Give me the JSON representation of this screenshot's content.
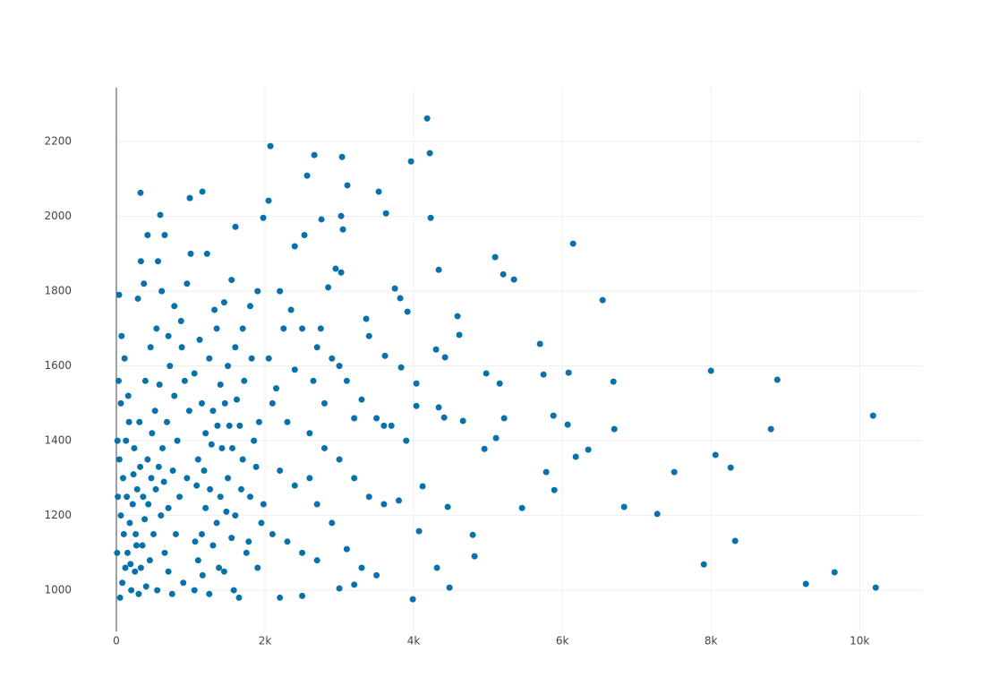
{
  "chart_data": {
    "type": "scatter",
    "color": "#0672a9",
    "grid": true,
    "xlim": [
      0,
      10840
    ],
    "ylim": [
      890,
      2344
    ],
    "xticks": [
      0,
      {
        "value": 2000,
        "label": "2k"
      },
      {
        "value": 4000,
        "label": "4k"
      },
      {
        "value": 6000,
        "label": "6k"
      },
      {
        "value": 8000,
        "label": "8k"
      },
      {
        "value": 10000,
        "label": "10k"
      }
    ],
    "yticks": [
      1000,
      1200,
      1400,
      1600,
      1800,
      2000,
      2200
    ],
    "x": [
      4181,
      2072,
      4217,
      2663,
      3036,
      3964,
      2566,
      3108,
      325,
      1157,
      3530,
      988,
      2048,
      3627,
      590,
      1976,
      3024,
      4229,
      2759,
      6145,
      1602,
      5096,
      5205,
      5349,
      4337,
      6542,
      4590,
      4614,
      5699,
      3916,
      36,
      8000,
      8892,
      6687,
      6084,
      5747,
      4976,
      5157,
      5880,
      10181,
      6072,
      5217,
      6699,
      8807,
      6349,
      6181,
      8060,
      8265,
      7506,
      5783,
      5892,
      5458,
      6831,
      7277,
      8325,
      7904,
      9663,
      9277,
      10217,
      4482,
      3988,
      4795,
      4819,
      4313,
      4072,
      4458,
      4120,
      4952,
      5108,
      4410,
      4663,
      4337,
      4036,
      4036,
      4301,
      4422,
      3831,
      3614,
      3361,
      3747,
      3819,
      3024,
      3048,
      2200,
      2350,
      2500,
      2700,
      2900,
      3100,
      3300,
      3500,
      3700,
      3900,
      2100,
      2300,
      2600,
      2800,
      3000,
      3200,
      3400,
      3600,
      3800,
      2200,
      2400,
      2700,
      2900,
      3100,
      3300,
      3500,
      2500,
      2700,
      2300,
      2100,
      2200,
      2500,
      3000,
      3200,
      2600,
      2800,
      3000,
      3200,
      3400,
      3600,
      2050,
      2150,
      2400,
      2650,
      2850,
      2950,
      2400,
      2530,
      2250,
      2750,
      50,
      80,
      120,
      150,
      100,
      60,
      200,
      250,
      300,
      350,
      180,
      220,
      280,
      90,
      40,
      130,
      170,
      60,
      30,
      110,
      70,
      20,
      10,
      15,
      400,
      450,
      500,
      550,
      600,
      650,
      700,
      750,
      800,
      850,
      900,
      950,
      420,
      480,
      520,
      580,
      620,
      680,
      720,
      780,
      820,
      880,
      920,
      980,
      360,
      320,
      240,
      160,
      140,
      260,
      380,
      430,
      470,
      530,
      570,
      640,
      700,
      760,
      330,
      270,
      190,
      230,
      310,
      390,
      460,
      540,
      610,
      330,
      370,
      290,
      420,
      560,
      650,
      950,
      870,
      780,
      700,
      1000,
      1050,
      1100,
      1150,
      1200,
      1250,
      1300,
      1350,
      1400,
      1450,
      1500,
      1550,
      1600,
      1650,
      1700,
      1750,
      1800,
      1850,
      1900,
      1950,
      1100,
      1200,
      1300,
      1400,
      1500,
      1600,
      1700,
      1800,
      1900,
      1150,
      1250,
      1350,
      1450,
      1550,
      1050,
      1120,
      1220,
      1320,
      1420,
      1520,
      1620,
      1720,
      1820,
      1920,
      1080,
      1180,
      1280,
      1380,
      1480,
      1580,
      1680,
      1780,
      1880,
      1980,
      1060,
      1160,
      1260,
      1360,
      1460,
      1560,
      1660
    ],
    "values": [
      2262,
      2188,
      2169,
      2164,
      2159,
      2147,
      2109,
      2083,
      2063,
      2066,
      2066,
      2049,
      2042,
      2008,
      2004,
      1996,
      2001,
      1996,
      1992,
      1927,
      1972,
      1891,
      1845,
      1831,
      1857,
      1776,
      1733,
      1683,
      1659,
      1745,
      1790,
      1587,
      1563,
      1558,
      1582,
      1577,
      1580,
      1553,
      1467,
      1467,
      1443,
      1460,
      1431,
      1431,
      1376,
      1357,
      1362,
      1328,
      1316,
      1316,
      1268,
      1220,
      1223,
      1204,
      1132,
      1069,
      1048,
      1017,
      1007,
      1007,
      976,
      1148,
      1091,
      1060,
      1158,
      1223,
      1278,
      1378,
      1407,
      1462,
      1453,
      1489,
      1493,
      1553,
      1644,
      1623,
      1596,
      1627,
      1726,
      1807,
      1781,
      1850,
      1965,
      1800,
      1750,
      1700,
      1650,
      1620,
      1560,
      1510,
      1460,
      1440,
      1400,
      1500,
      1450,
      1420,
      1380,
      1350,
      1300,
      1250,
      1230,
      1240,
      1320,
      1280,
      1230,
      1180,
      1110,
      1060,
      1040,
      1100,
      1080,
      1130,
      1150,
      980,
      985,
      1005,
      1015,
      1300,
      1500,
      1600,
      1460,
      1680,
      1440,
      1620,
      1540,
      1590,
      1560,
      1810,
      1860,
      1920,
      1950,
      1700,
      1700,
      980,
      1020,
      1060,
      1100,
      1150,
      1200,
      1000,
      1050,
      990,
      1120,
      1180,
      1230,
      1270,
      1300,
      1350,
      1400,
      1450,
      1500,
      1560,
      1620,
      1680,
      1250,
      1100,
      1400,
      1010,
      1080,
      1150,
      1000,
      1200,
      1100,
      1050,
      990,
      1150,
      1250,
      1020,
      1300,
      1350,
      1420,
      1480,
      1550,
      1380,
      1450,
      1600,
      1520,
      1400,
      1650,
      1560,
      1480,
      1250,
      1330,
      1380,
      1520,
      1250,
      1150,
      1190,
      1230,
      1300,
      1270,
      1330,
      1290,
      1220,
      1320,
      1060,
      1120,
      1070,
      1310,
      1450,
      1560,
      1650,
      1700,
      1800,
      1880,
      1820,
      1780,
      1950,
      1880,
      1950,
      1820,
      1720,
      1760,
      1680,
      1900,
      1000,
      1080,
      1150,
      1220,
      990,
      1120,
      1180,
      1250,
      1050,
      1300,
      1140,
      1200,
      980,
      1350,
      1100,
      1250,
      1400,
      1060,
      1180,
      1350,
      1420,
      1480,
      1550,
      1600,
      1650,
      1700,
      1760,
      1800,
      1500,
      1620,
      1700,
      1770,
      1830,
      1580,
      1670,
      1900,
      1750,
      1380,
      1440,
      1510,
      1560,
      1620,
      1450,
      1280,
      1320,
      1390,
      1060,
      1210,
      1000,
      1270,
      1130,
      1330,
      1230,
      1130,
      1040,
      1270,
      1440,
      1500,
      1380,
      1440
    ]
  }
}
